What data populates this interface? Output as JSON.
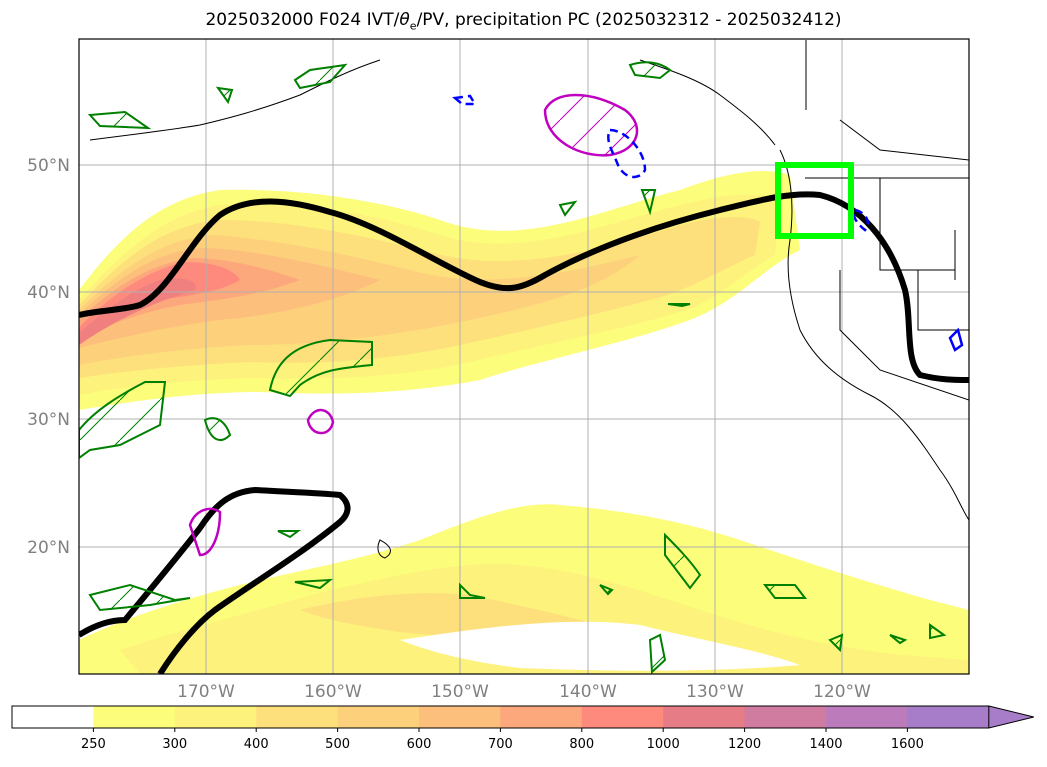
{
  "title": {
    "prefix": "2025032000 F024 IVT/",
    "theta": "θ",
    "subscript": "e",
    "suffix": "/PV, precipitation PC (2025032312 - 2025032412)"
  },
  "map": {
    "projection": "PlateCarree",
    "lon_range": [
      -180,
      -110
    ],
    "lat_range": [
      10,
      60
    ],
    "lon_ticks": [
      {
        "value": -170,
        "label": "170°W"
      },
      {
        "value": -160,
        "label": "160°W"
      },
      {
        "value": -150,
        "label": "150°W"
      },
      {
        "value": -140,
        "label": "140°W"
      },
      {
        "value": -130,
        "label": "130°W"
      },
      {
        "value": -120,
        "label": "120°W"
      }
    ],
    "lat_ticks": [
      {
        "value": 20,
        "label": "20°N"
      },
      {
        "value": 30,
        "label": "30°N"
      },
      {
        "value": 40,
        "label": "40°N"
      },
      {
        "value": 50,
        "label": "50°N"
      }
    ],
    "gridlines": true,
    "highlight_box": {
      "lon": [
        -125,
        -119
      ],
      "lat": [
        44.5,
        50
      ],
      "color": "#00ff00"
    }
  },
  "colorbar": {
    "levels": [
      "250",
      "300",
      "400",
      "500",
      "600",
      "700",
      "800",
      "1000",
      "1200",
      "1400",
      "1600"
    ],
    "colors": [
      "#ffffff",
      "#fdfd7c",
      "#fdf27c",
      "#fde07c",
      "#fdd07c",
      "#fdbf7c",
      "#fda77c",
      "#fd8a7c",
      "#e67c86",
      "#d07ca0",
      "#bc7cbc",
      "#a77cc8"
    ],
    "extend": "max"
  },
  "colors": {
    "ivt_low": "#fdfd7c",
    "ivt_mid": "#fde07c",
    "ivt_high": "#fd8a7c",
    "theta_e_contour": "#000000",
    "pv_contour": "#008000",
    "precip_positive": "#c000c0",
    "precip_negative": "#0000ff"
  }
}
